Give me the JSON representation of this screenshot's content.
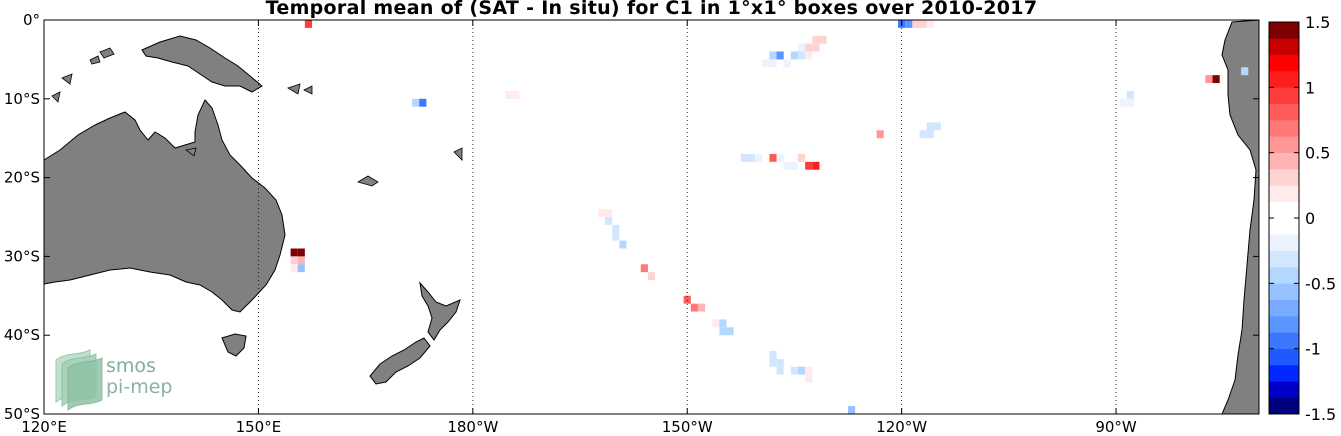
{
  "chart_data": {
    "type": "heatmap",
    "title": "Temporal mean of (SAT - In situ) for C1 in 1°x1° boxes over 2010-2017",
    "map_extent": {
      "lon": [
        120,
        290
      ],
      "lat": [
        -50,
        0
      ]
    },
    "x_ticks": [
      {
        "lon": 120,
        "label": "120°E"
      },
      {
        "lon": 150,
        "label": "150°E"
      },
      {
        "lon": 180,
        "label": "180°W"
      },
      {
        "lon": 210,
        "label": "150°W"
      },
      {
        "lon": 240,
        "label": "120°W"
      },
      {
        "lon": 270,
        "label": "90°W"
      }
    ],
    "y_ticks": [
      {
        "lat": 0,
        "label": "0°"
      },
      {
        "lat": -10,
        "label": "10°S"
      },
      {
        "lat": -20,
        "label": "20°S"
      },
      {
        "lat": -30,
        "label": "30°S"
      },
      {
        "lat": -40,
        "label": "40°S"
      },
      {
        "lat": -50,
        "label": "50°S"
      }
    ],
    "grid": true,
    "colorbar": {
      "range": [
        -1.5,
        1.5
      ],
      "ticks": [
        {
          "v": 1.5,
          "label": "1.5"
        },
        {
          "v": 1,
          "label": "1"
        },
        {
          "v": 0.5,
          "label": "0.5"
        },
        {
          "v": 0,
          "label": "0"
        },
        {
          "v": -0.5,
          "label": "-0.5"
        },
        {
          "v": -1,
          "label": "-1"
        },
        {
          "v": -1.5,
          "label": "-1.5"
        }
      ],
      "colors": [
        "#00007f",
        "#0000c8",
        "#0028ff",
        "#1e5aff",
        "#3c78ff",
        "#5a96ff",
        "#78aaff",
        "#96c3ff",
        "#b4d7ff",
        "#d2e6ff",
        "#ebf3ff",
        "#ffffff",
        "#ffffff",
        "#ffebeb",
        "#ffd2d2",
        "#ffb4b4",
        "#ff9696",
        "#ff7878",
        "#ff5a5a",
        "#ff3c3c",
        "#ff1e1e",
        "#ff0000",
        "#c80000",
        "#7f0000"
      ]
    },
    "boxes": [
      {
        "lon": 157,
        "lat": -0.5,
        "v": 0.9
      },
      {
        "lon": 240,
        "lat": -0.5,
        "v": -0.9
      },
      {
        "lon": 241,
        "lat": -0.5,
        "v": -0.8
      },
      {
        "lon": 242,
        "lat": -0.5,
        "v": 0.3
      },
      {
        "lon": 243,
        "lat": -0.5,
        "v": 0.25
      },
      {
        "lon": 244,
        "lat": -0.5,
        "v": 0.2
      },
      {
        "lon": 239,
        "lat": -1.5,
        "v": -0.1
      },
      {
        "lon": 228,
        "lat": -2.5,
        "v": 0.3
      },
      {
        "lon": 229,
        "lat": -2.5,
        "v": 0.3
      },
      {
        "lon": 226,
        "lat": -3.5,
        "v": -0.2
      },
      {
        "lon": 227,
        "lat": -3.5,
        "v": 0.25
      },
      {
        "lon": 228,
        "lat": -3.5,
        "v": 0.3
      },
      {
        "lon": 222,
        "lat": -4.5,
        "v": -0.4
      },
      {
        "lon": 223,
        "lat": -4.5,
        "v": -0.8
      },
      {
        "lon": 225,
        "lat": -4.5,
        "v": -0.4
      },
      {
        "lon": 226,
        "lat": -4.5,
        "v": -0.3
      },
      {
        "lon": 227,
        "lat": -4.5,
        "v": 0.2
      },
      {
        "lon": 221,
        "lat": -5.5,
        "v": -0.2
      },
      {
        "lon": 222,
        "lat": -5.5,
        "v": -0.2
      },
      {
        "lon": 224,
        "lat": -5.5,
        "v": -0.15
      },
      {
        "lon": 288,
        "lat": -6.5,
        "v": -0.4
      },
      {
        "lon": 283,
        "lat": -7.5,
        "v": 0.6
      },
      {
        "lon": 284,
        "lat": -7.5,
        "v": 1.4
      },
      {
        "lon": 278,
        "lat": -8.5,
        "v": -0.1
      },
      {
        "lon": 279,
        "lat": -8.5,
        "v": -0.1
      },
      {
        "lon": 272,
        "lat": -9.5,
        "v": -0.3
      },
      {
        "lon": 271,
        "lat": -10.5,
        "v": -0.2
      },
      {
        "lon": 272,
        "lat": -10.5,
        "v": -0.2
      },
      {
        "lon": 185,
        "lat": -9.5,
        "v": 0.2
      },
      {
        "lon": 186,
        "lat": -9.5,
        "v": 0.2
      },
      {
        "lon": 172,
        "lat": -10.5,
        "v": -0.4
      },
      {
        "lon": 173,
        "lat": -10.5,
        "v": -0.9
      },
      {
        "lon": 244,
        "lat": -13.5,
        "v": -0.3
      },
      {
        "lon": 245,
        "lat": -13.5,
        "v": -0.3
      },
      {
        "lon": 243,
        "lat": -14.5,
        "v": -0.3
      },
      {
        "lon": 244,
        "lat": -14.5,
        "v": -0.3
      },
      {
        "lon": 237,
        "lat": -14.5,
        "v": 0.6
      },
      {
        "lon": 218,
        "lat": -17.5,
        "v": -0.3
      },
      {
        "lon": 219,
        "lat": -17.5,
        "v": -0.3
      },
      {
        "lon": 220,
        "lat": -17.5,
        "v": -0.25
      },
      {
        "lon": 222,
        "lat": -17.5,
        "v": 0.8
      },
      {
        "lon": 223,
        "lat": -17.5,
        "v": -0.2
      },
      {
        "lon": 226,
        "lat": -17.5,
        "v": 0.3
      },
      {
        "lon": 224,
        "lat": -18.5,
        "v": -0.2
      },
      {
        "lon": 225,
        "lat": -18.5,
        "v": -0.15
      },
      {
        "lon": 227,
        "lat": -18.5,
        "v": 0.9
      },
      {
        "lon": 228,
        "lat": -18.5,
        "v": 1.1
      },
      {
        "lon": 197,
        "lat": -23.5,
        "v": -0.1
      },
      {
        "lon": 198,
        "lat": -24.5,
        "v": 0.2
      },
      {
        "lon": 199,
        "lat": -24.5,
        "v": 0.2
      },
      {
        "lon": 199,
        "lat": -25.5,
        "v": -0.3
      },
      {
        "lon": 200,
        "lat": -26.5,
        "v": -0.3
      },
      {
        "lon": 200,
        "lat": -27.5,
        "v": -0.3
      },
      {
        "lon": 201,
        "lat": -28.5,
        "v": -0.4
      },
      {
        "lon": 155,
        "lat": -29.5,
        "v": 1.4
      },
      {
        "lon": 156,
        "lat": -29.5,
        "v": 1.4
      },
      {
        "lon": 155,
        "lat": -30.5,
        "v": 0.3
      },
      {
        "lon": 156,
        "lat": -30.5,
        "v": 0.4
      },
      {
        "lon": 155,
        "lat": -31.5,
        "v": 0.2
      },
      {
        "lon": 156,
        "lat": -31.5,
        "v": -0.6
      },
      {
        "lon": 204,
        "lat": -31.5,
        "v": 0.7
      },
      {
        "lon": 205,
        "lat": -32.5,
        "v": 0.3
      },
      {
        "lon": 210,
        "lat": -35.5,
        "v": 0.8
      },
      {
        "lon": 211,
        "lat": -36.5,
        "v": 0.7
      },
      {
        "lon": 212,
        "lat": -36.5,
        "v": 0.4
      },
      {
        "lon": 214,
        "lat": -38.5,
        "v": 0.2
      },
      {
        "lon": 215,
        "lat": -38.5,
        "v": -0.4
      },
      {
        "lon": 215,
        "lat": -39.5,
        "v": -0.5
      },
      {
        "lon": 216,
        "lat": -39.5,
        "v": -0.5
      },
      {
        "lon": 222,
        "lat": -42.5,
        "v": -0.3
      },
      {
        "lon": 222,
        "lat": -43.5,
        "v": -0.3
      },
      {
        "lon": 223,
        "lat": -43.5,
        "v": -0.3
      },
      {
        "lon": 223,
        "lat": -44.5,
        "v": -0.3
      },
      {
        "lon": 225,
        "lat": -44.5,
        "v": -0.3
      },
      {
        "lon": 226,
        "lat": -44.5,
        "v": -0.4
      },
      {
        "lon": 227,
        "lat": -44.5,
        "v": 0.2
      },
      {
        "lon": 227,
        "lat": -45.5,
        "v": 0.2
      },
      {
        "lon": 233,
        "lat": -49.5,
        "v": -0.6
      }
    ]
  },
  "logo": {
    "line1": "smos",
    "line2": "pi-mep"
  },
  "colors": {
    "land": "#808080",
    "coast": "#000000",
    "grid": "#000000"
  }
}
